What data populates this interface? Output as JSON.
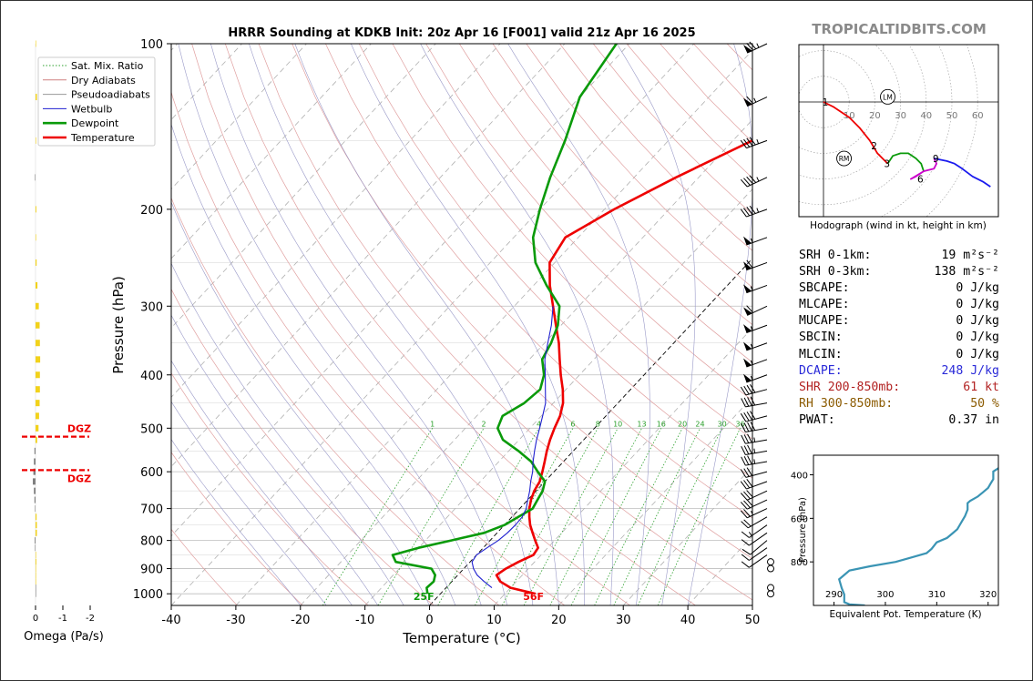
{
  "page": {
    "title": "HRRR Sounding at KDKB Init: 20z Apr 16 [F001] valid 21z Apr 16 2025",
    "brand": "TROPICALTIDBITS.COM"
  },
  "legend": {
    "items": [
      {
        "label": "Sat. Mix. Ratio",
        "color": "#2ca02c",
        "style": "dotted"
      },
      {
        "label": "Dry Adiabats",
        "color": "#d08080",
        "style": "solid"
      },
      {
        "label": "Pseudoadiabats",
        "color": "#9a9a9a",
        "style": "solid"
      },
      {
        "label": "Wetbulb",
        "color": "#1f1fd0",
        "style": "solid"
      },
      {
        "label": "Dewpoint",
        "color": "#0a9a0a",
        "style": "solid"
      },
      {
        "label": "Temperature",
        "color": "#ee0000",
        "style": "solid"
      }
    ]
  },
  "colors": {
    "temperature": "#ee0000",
    "dewpoint": "#0a9a0a",
    "wetbulb": "#1f1fd0",
    "dgz": "#ee0000",
    "omega_up": "#f2d21b",
    "omega_down": "#808080",
    "theta_e": "#3a94b4",
    "dcape": "#2a2ad8",
    "shear": "#b22222",
    "rh": "#8b5a00"
  },
  "chart_data": [
    {
      "type": "line",
      "name": "skewt",
      "xlabel": "Temperature (°C)",
      "ylabel": "Pressure (hPa)",
      "xlim": [
        -40,
        50
      ],
      "ylim": [
        1050,
        100
      ],
      "y_scale": "log",
      "x_ticks": [
        -40,
        -30,
        -20,
        -10,
        0,
        10,
        20,
        30,
        40,
        50
      ],
      "y_ticks": [
        100,
        200,
        300,
        400,
        500,
        600,
        700,
        800,
        900,
        1000
      ],
      "mixing_ratio_labels": [
        1,
        2,
        4,
        6,
        8,
        10,
        13,
        16,
        20,
        24,
        30,
        36
      ],
      "series": [
        {
          "name": "Temperature",
          "points": [
            [
              14.7,
              1000
            ],
            [
              10,
              975
            ],
            [
              7.5,
              950
            ],
            [
              6,
              925
            ],
            [
              6.5,
              900
            ],
            [
              7.5,
              875
            ],
            [
              8.8,
              850
            ],
            [
              8.5,
              825
            ],
            [
              7,
              800
            ],
            [
              5.5,
              775
            ],
            [
              4,
              750
            ],
            [
              2.7,
              725
            ],
            [
              1.5,
              700
            ],
            [
              0.5,
              675
            ],
            [
              -0.3,
              650
            ],
            [
              -0.8,
              625
            ],
            [
              -1.8,
              600
            ],
            [
              -2.9,
              575
            ],
            [
              -4.1,
              550
            ],
            [
              -5.2,
              525
            ],
            [
              -6.2,
              500
            ],
            [
              -7.1,
              475
            ],
            [
              -8.5,
              450
            ],
            [
              -10.5,
              425
            ],
            [
              -12.9,
              400
            ],
            [
              -15.3,
              375
            ],
            [
              -17.8,
              350
            ],
            [
              -20.8,
              325
            ],
            [
              -24,
              300
            ],
            [
              -27.5,
              275
            ],
            [
              -30.8,
              250
            ],
            [
              -32,
              225
            ],
            [
              -28.5,
              200
            ],
            [
              -23.5,
              175
            ],
            [
              -17,
              150
            ],
            [
              -11,
              125
            ],
            [
              -6.5,
              100
            ]
          ]
        },
        {
          "name": "Dewpoint",
          "points": [
            [
              -2,
              1000
            ],
            [
              -3,
              975
            ],
            [
              -2.8,
              950
            ],
            [
              -3.5,
              925
            ],
            [
              -5,
              900
            ],
            [
              -11.5,
              875
            ],
            [
              -13,
              850
            ],
            [
              -10,
              825
            ],
            [
              -6,
              800
            ],
            [
              -2,
              775
            ],
            [
              0,
              750
            ],
            [
              1,
              725
            ],
            [
              2,
              700
            ],
            [
              1.5,
              675
            ],
            [
              1,
              650
            ],
            [
              0,
              625
            ],
            [
              -2.5,
              600
            ],
            [
              -5,
              575
            ],
            [
              -8.5,
              550
            ],
            [
              -12.5,
              525
            ],
            [
              -15,
              500
            ],
            [
              -16,
              475
            ],
            [
              -14.5,
              450
            ],
            [
              -14,
              425
            ],
            [
              -15.5,
              400
            ],
            [
              -18,
              375
            ],
            [
              -19,
              350
            ],
            [
              -20.5,
              325
            ],
            [
              -23,
              300
            ],
            [
              -28,
              275
            ],
            [
              -33,
              250
            ],
            [
              -37,
              225
            ],
            [
              -40,
              200
            ],
            [
              -43,
              175
            ],
            [
              -46,
              150
            ],
            [
              -50,
              125
            ],
            [
              -52,
              100
            ]
          ]
        },
        {
          "name": "Wetbulb",
          "points": [
            [
              7.1,
              975
            ],
            [
              5,
              950
            ],
            [
              3,
              925
            ],
            [
              1.5,
              900
            ],
            [
              0.3,
              875
            ],
            [
              0,
              850
            ],
            [
              0.6,
              825
            ],
            [
              1.3,
              800
            ],
            [
              1.6,
              775
            ],
            [
              1.7,
              750
            ],
            [
              1.6,
              725
            ],
            [
              1,
              700
            ],
            [
              0,
              675
            ],
            [
              -1,
              650
            ],
            [
              -2.2,
              625
            ],
            [
              -3.3,
              600
            ],
            [
              -4.7,
              575
            ],
            [
              -6,
              550
            ],
            [
              -7.3,
              525
            ],
            [
              -8.5,
              500
            ],
            [
              -9.8,
              475
            ],
            [
              -11.2,
              450
            ],
            [
              -13.2,
              425
            ],
            [
              -15.3,
              400
            ],
            [
              -17.6,
              375
            ],
            [
              -19.5,
              350
            ],
            [
              -21.5,
              325
            ],
            [
              -24,
              300
            ]
          ]
        }
      ],
      "surface_labels": {
        "dewpoint": "25F",
        "temperature": "56F"
      },
      "dgz_label": "DGZ"
    },
    {
      "type": "line",
      "name": "hodograph",
      "caption": "Hodograph (wind in kt, height in km)",
      "ring_labels": [
        10,
        20,
        30,
        40,
        50,
        60
      ],
      "markers": [
        "LM",
        "RM"
      ],
      "segments": [
        {
          "color": "#ee0000",
          "points": [
            [
              0,
              0
            ],
            [
              4,
              -2
            ],
            [
              10,
              -6
            ],
            [
              14,
              -10
            ],
            [
              18,
              -15
            ],
            [
              21,
              -20
            ],
            [
              25,
              -24
            ]
          ]
        },
        {
          "color": "#0a9a0a",
          "points": [
            [
              25,
              -24
            ],
            [
              27,
              -21
            ],
            [
              30,
              -20
            ],
            [
              33,
              -20
            ],
            [
              36,
              -22
            ],
            [
              38,
              -24
            ],
            [
              39,
              -27
            ]
          ]
        },
        {
          "color": "#cc00cc",
          "points": [
            [
              39,
              -27
            ],
            [
              36,
              -29
            ],
            [
              34,
              -30
            ],
            [
              39,
              -27
            ],
            [
              43,
              -26
            ],
            [
              44,
              -24
            ],
            [
              43,
              -22
            ]
          ]
        },
        {
          "color": "#1a1aee",
          "points": [
            [
              43,
              -22
            ],
            [
              48,
              -23
            ],
            [
              51,
              -24
            ],
            [
              54,
              -26
            ],
            [
              58,
              -29
            ],
            [
              62,
              -31
            ],
            [
              65,
              -33
            ]
          ]
        }
      ],
      "height_labels": [
        {
          "km": "1",
          "u": 0,
          "v": 0
        },
        {
          "km": "2",
          "u": 19,
          "v": -17
        },
        {
          "km": "3",
          "u": 24,
          "v": -24
        },
        {
          "km": "6",
          "u": 37,
          "v": -30
        },
        {
          "km": "9",
          "u": 43,
          "v": -22
        }
      ]
    },
    {
      "type": "line",
      "name": "theta_e",
      "xlabel": "Equivalent Pot. Temperature (K)",
      "ylabel": "Pressure (hPa)",
      "xlim": [
        286,
        322
      ],
      "ylim": [
        1000,
        310
      ],
      "x_ticks": [
        290,
        300,
        310,
        320
      ],
      "y_ticks": [
        400,
        600,
        800
      ],
      "series": [
        {
          "name": "Theta-E",
          "points": [
            [
              296,
              1000
            ],
            [
              293,
              995
            ],
            [
              292,
              985
            ],
            [
              292,
              950
            ],
            [
              291.5,
              920
            ],
            [
              291,
              880
            ],
            [
              292,
              860
            ],
            [
              293,
              840
            ],
            [
              297,
              820
            ],
            [
              302,
              800
            ],
            [
              305,
              780
            ],
            [
              308,
              760
            ],
            [
              309,
              740
            ],
            [
              310,
              710
            ],
            [
              312,
              690
            ],
            [
              313,
              670
            ],
            [
              314,
              650
            ],
            [
              314.5,
              630
            ],
            [
              315,
              610
            ],
            [
              315.5,
              590
            ],
            [
              316,
              560
            ],
            [
              316,
              530
            ],
            [
              316.5,
              520
            ],
            [
              318,
              500
            ],
            [
              319,
              480
            ],
            [
              320,
              460
            ],
            [
              320.5,
              440
            ],
            [
              321,
              420
            ],
            [
              321,
              400
            ],
            [
              321,
              385
            ],
            [
              322,
              370
            ],
            [
              323,
              350
            ],
            [
              324,
              330
            ],
            [
              325,
              310
            ]
          ]
        }
      ]
    },
    {
      "type": "bar",
      "name": "omega",
      "xlabel": "Omega (Pa/s)",
      "x_ticks": [
        0,
        -1,
        -2
      ],
      "levels": [
        100,
        125,
        150,
        175,
        200,
        225,
        250,
        275,
        300,
        325,
        350,
        375,
        400,
        425,
        450,
        475,
        500,
        525,
        550,
        575,
        600,
        625,
        650,
        675,
        700,
        725,
        750,
        775,
        800,
        825,
        850,
        875,
        900,
        925,
        950,
        975,
        1000
      ],
      "values": [
        -0.02,
        -0.05,
        -0.02,
        0.02,
        -0.03,
        -0.02,
        -0.04,
        -0.07,
        -0.12,
        -0.15,
        -0.16,
        -0.17,
        -0.16,
        -0.16,
        -0.15,
        -0.13,
        -0.11,
        -0.06,
        0.04,
        0.06,
        0.08,
        0.1,
        0.06,
        0.04,
        0.02,
        -0.04,
        -0.05,
        -0.05,
        0.03,
        0.02,
        -0.01,
        -0.03,
        -0.01,
        -0.02,
        -0.01,
        0,
        0
      ]
    }
  ],
  "winds": [
    {
      "p": 100,
      "spd": 75,
      "dir": 245
    },
    {
      "p": 125,
      "spd": 65,
      "dir": 245
    },
    {
      "p": 150,
      "spd": 45,
      "dir": 250
    },
    {
      "p": 175,
      "spd": 45,
      "dir": 245
    },
    {
      "p": 200,
      "spd": 45,
      "dir": 250
    },
    {
      "p": 225,
      "spd": 55,
      "dir": 250
    },
    {
      "p": 250,
      "spd": 60,
      "dir": 250
    },
    {
      "p": 275,
      "spd": 55,
      "dir": 250
    },
    {
      "p": 300,
      "spd": 60,
      "dir": 245
    },
    {
      "p": 325,
      "spd": 55,
      "dir": 250
    },
    {
      "p": 350,
      "spd": 55,
      "dir": 250
    },
    {
      "p": 375,
      "spd": 55,
      "dir": 250
    },
    {
      "p": 400,
      "spd": 55,
      "dir": 250
    },
    {
      "p": 425,
      "spd": 40,
      "dir": 255
    },
    {
      "p": 450,
      "spd": 40,
      "dir": 260
    },
    {
      "p": 475,
      "spd": 40,
      "dir": 255
    },
    {
      "p": 500,
      "spd": 40,
      "dir": 260
    },
    {
      "p": 525,
      "spd": 35,
      "dir": 260
    },
    {
      "p": 550,
      "spd": 35,
      "dir": 260
    },
    {
      "p": 575,
      "spd": 35,
      "dir": 260
    },
    {
      "p": 600,
      "spd": 30,
      "dir": 255
    },
    {
      "p": 625,
      "spd": 30,
      "dir": 250
    },
    {
      "p": 650,
      "spd": 30,
      "dir": 245
    },
    {
      "p": 675,
      "spd": 30,
      "dir": 245
    },
    {
      "p": 700,
      "spd": 25,
      "dir": 245
    },
    {
      "p": 725,
      "spd": 20,
      "dir": 240
    },
    {
      "p": 750,
      "spd": 15,
      "dir": 235
    },
    {
      "p": 775,
      "spd": 10,
      "dir": 235
    },
    {
      "p": 800,
      "spd": 10,
      "dir": 230
    },
    {
      "p": 825,
      "spd": 10,
      "dir": 235
    },
    {
      "p": 850,
      "spd": 10,
      "dir": 235
    },
    {
      "p": 875,
      "spd": 0,
      "dir": 0
    },
    {
      "p": 900,
      "spd": 0,
      "dir": 0
    },
    {
      "p": 975,
      "spd": 0,
      "dir": 0
    },
    {
      "p": 1000,
      "spd": 0,
      "dir": 0
    }
  ],
  "dgz": [
    {
      "p": 518
    },
    {
      "p": 596
    }
  ],
  "stats": [
    {
      "label": "SRH 0-1km:",
      "value": "19 m²s⁻²",
      "color": "#000000"
    },
    {
      "label": "SRH 0-3km:",
      "value": "138 m²s⁻²",
      "color": "#000000"
    },
    {
      "label": "SBCAPE:",
      "value": "0 J/kg",
      "color": "#000000"
    },
    {
      "label": "MLCAPE:",
      "value": "0 J/kg",
      "color": "#000000"
    },
    {
      "label": "MUCAPE:",
      "value": "0 J/kg",
      "color": "#000000"
    },
    {
      "label": "SBCIN:",
      "value": "0 J/kg",
      "color": "#000000"
    },
    {
      "label": "MLCIN:",
      "value": "0 J/kg",
      "color": "#000000"
    },
    {
      "label": "DCAPE:",
      "value": "248 J/kg",
      "color": "#2a2ad8"
    },
    {
      "label": "SHR 200-850mb:",
      "value": "61 kt",
      "color": "#b22222"
    },
    {
      "label": "RH 300-850mb:",
      "value": "50 %",
      "color": "#8b5a00"
    },
    {
      "label": "PWAT:",
      "value": "0.37 in",
      "color": "#000000"
    }
  ]
}
